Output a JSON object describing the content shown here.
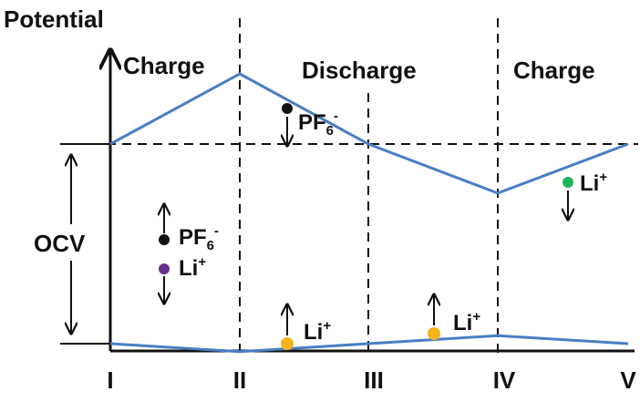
{
  "title": "Potential",
  "left_label": "OCV",
  "x_ticks": [
    "I",
    "II",
    "III",
    "IV",
    "V"
  ],
  "phases": [
    "Charge",
    "Discharge",
    "Charge"
  ],
  "upper_curve": [
    0,
    1,
    0,
    -0.7,
    0
  ],
  "lower_curve": [
    0,
    -0.1,
    0,
    0.1,
    0
  ],
  "ions": {
    "pf6_upper": {
      "base": "PF",
      "sub": "6",
      "sup": "-"
    },
    "li_upper": {
      "base": "Li",
      "sup": "+"
    },
    "pf6_left": {
      "base": "PF",
      "sub": "6",
      "sup": "-"
    },
    "li_left": {
      "base": "Li",
      "sup": "+"
    },
    "li_lower_1": {
      "base": "Li",
      "sup": "+"
    },
    "li_lower_2": {
      "base": "Li",
      "sup": "+"
    }
  },
  "colors": {
    "curve": "#4a7ec3",
    "axis": "#111111",
    "pf6": "#111111",
    "li_green": "#1fb35a",
    "li_purple": "#6b2f8f",
    "li_orange": "#f5b21b"
  }
}
